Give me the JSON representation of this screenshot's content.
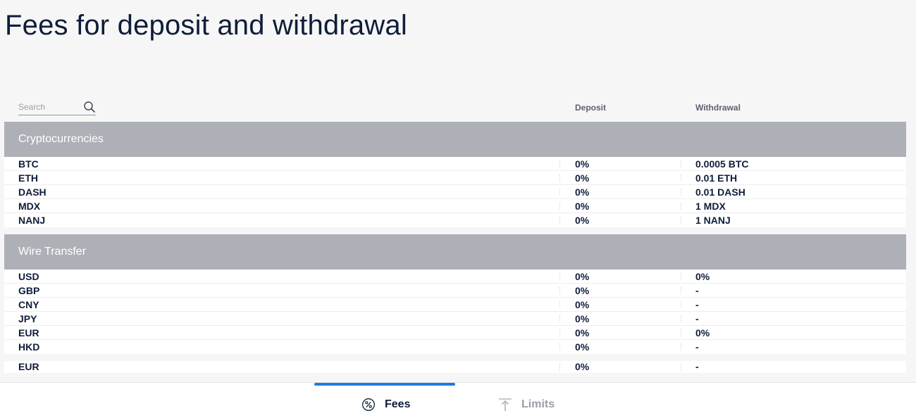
{
  "page": {
    "title": "Fees for deposit and withdrawal"
  },
  "search": {
    "placeholder": "Search",
    "value": "",
    "icon": "search-icon"
  },
  "columns": {
    "deposit": "Deposit",
    "withdrawal": "Withdrawal"
  },
  "sections": [
    {
      "title": "Cryptocurrencies",
      "rows": [
        {
          "name": "BTC",
          "deposit": "0%",
          "withdrawal": "0.0005 BTC"
        },
        {
          "name": "ETH",
          "deposit": "0%",
          "withdrawal": "0.01 ETH"
        },
        {
          "name": "DASH",
          "deposit": "0%",
          "withdrawal": "0.01 DASH"
        },
        {
          "name": "MDX",
          "deposit": "0%",
          "withdrawal": "1 MDX"
        },
        {
          "name": "NANJ",
          "deposit": "0%",
          "withdrawal": "1 NANJ"
        }
      ]
    },
    {
      "title": "Wire Transfer",
      "rows": [
        {
          "name": "USD",
          "deposit": "0%",
          "withdrawal": "0%"
        },
        {
          "name": "GBP",
          "deposit": "0%",
          "withdrawal": "-"
        },
        {
          "name": "CNY",
          "deposit": "0%",
          "withdrawal": "-"
        },
        {
          "name": "JPY",
          "deposit": "0%",
          "withdrawal": "-"
        },
        {
          "name": "EUR",
          "deposit": "0%",
          "withdrawal": "0%"
        },
        {
          "name": "HKD",
          "deposit": "0%",
          "withdrawal": "-"
        }
      ]
    },
    {
      "title": "",
      "rows": [
        {
          "name": "EUR",
          "deposit": "0%",
          "withdrawal": "-"
        }
      ]
    }
  ],
  "tabs": [
    {
      "label": "Fees",
      "icon": "percent-icon",
      "active": true
    },
    {
      "label": "Limits",
      "icon": "upload-arrow-icon",
      "active": false
    }
  ],
  "colors": {
    "title": "#0f1d3a",
    "section_header_bg": "#aeb0b7",
    "active_tab_indicator": "#1a7be0",
    "inactive_tab_text": "#9a9ea9"
  }
}
